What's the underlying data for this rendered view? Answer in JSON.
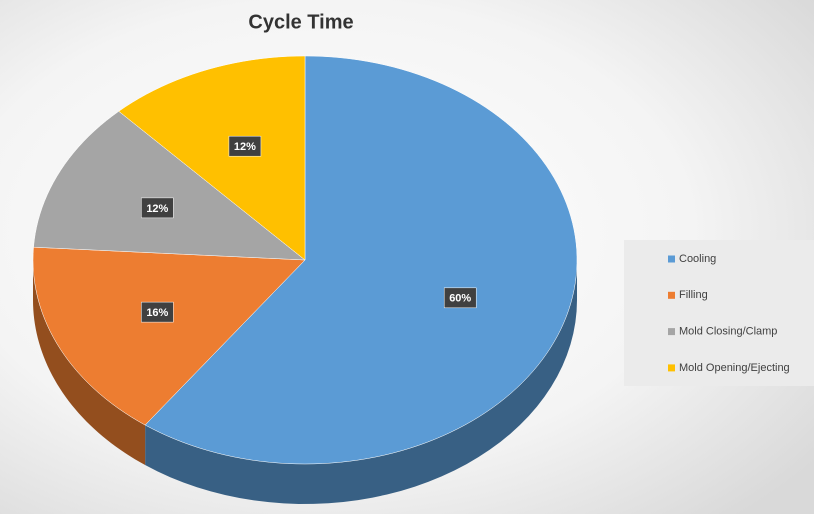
{
  "chart_data": {
    "type": "pie",
    "title": "Cycle Time",
    "categories": [
      "Cooling",
      "Filling",
      "Mold Closing/Clamp",
      "Mold Opening/Ejecting"
    ],
    "values": [
      60,
      16,
      12,
      12
    ],
    "value_labels": [
      "60%",
      "16%",
      "12%",
      "12%"
    ],
    "colors": [
      "#5b9bd5",
      "#ed7d31",
      "#a5a5a5",
      "#ffc000"
    ],
    "legend": "right"
  }
}
